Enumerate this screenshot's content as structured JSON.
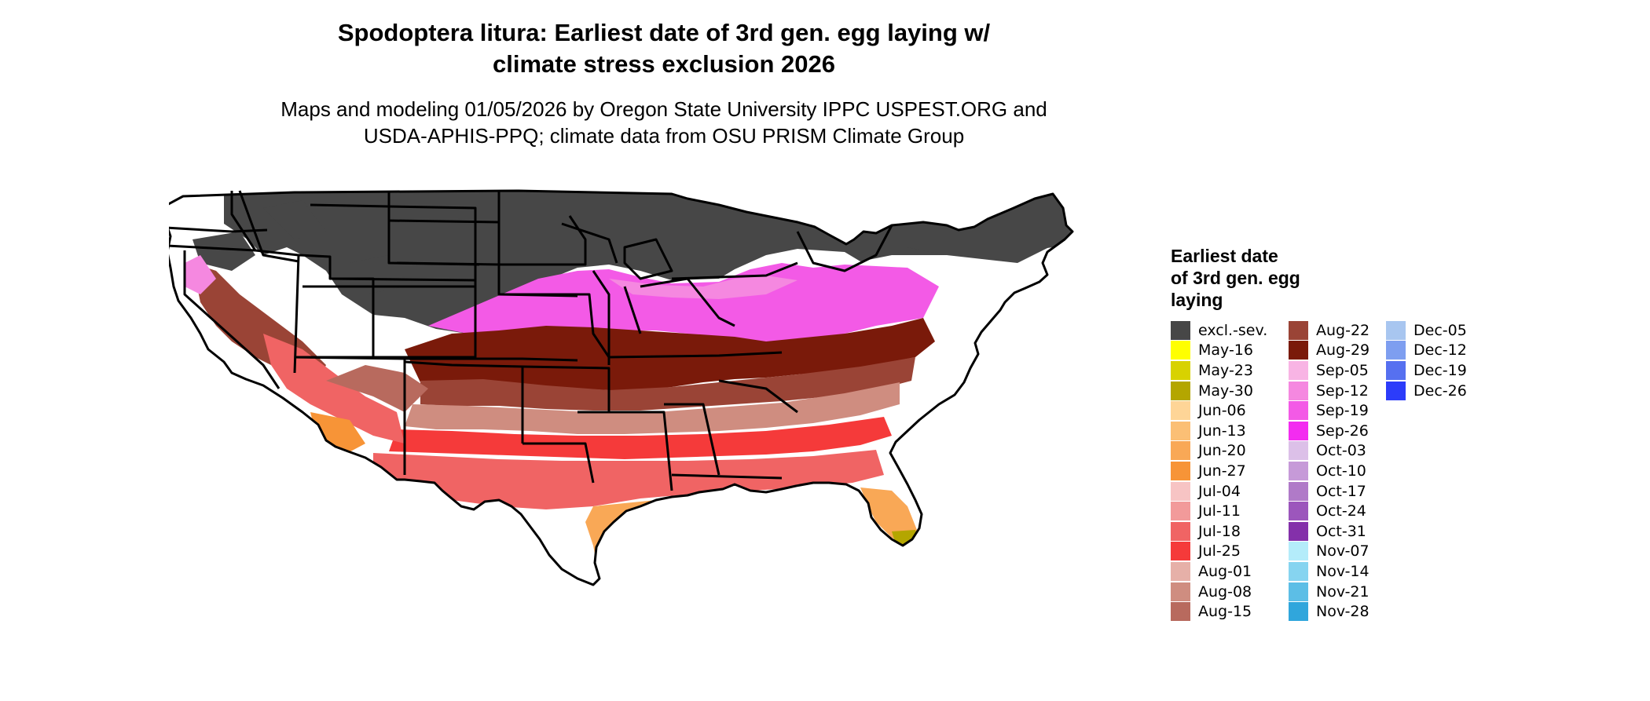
{
  "title_line1": "Spodoptera litura: Earliest date of 3rd gen. egg laying w/",
  "title_line2": "climate stress exclusion 2026",
  "subtitle_line1": "Maps and modeling 01/05/2026 by Oregon State University IPPC USPEST.ORG and",
  "subtitle_line2": "USDA-APHIS-PPQ; climate data from OSU PRISM Climate Group",
  "legend": {
    "title_line1": "Earliest date",
    "title_line2": "of 3rd gen. egg",
    "title_line3": "laying",
    "columns": [
      [
        {
          "label": "excl.-sev.",
          "color": "#474747"
        },
        {
          "label": "May-16",
          "color": "#ffff00"
        },
        {
          "label": "May-23",
          "color": "#d8d200"
        },
        {
          "label": "May-30",
          "color": "#b4a600"
        },
        {
          "label": "Jun-06",
          "color": "#fed597"
        },
        {
          "label": "Jun-13",
          "color": "#fbbf75"
        },
        {
          "label": "Jun-20",
          "color": "#f9a856"
        },
        {
          "label": "Jun-27",
          "color": "#f79437"
        },
        {
          "label": "Jul-04",
          "color": "#f7c4c4"
        },
        {
          "label": "Jul-11",
          "color": "#f29a9a"
        },
        {
          "label": "Jul-18",
          "color": "#f06464"
        },
        {
          "label": "Jul-25",
          "color": "#f53a3a"
        },
        {
          "label": "Aug-01",
          "color": "#e6b0a8"
        },
        {
          "label": "Aug-08",
          "color": "#cf8d80"
        },
        {
          "label": "Aug-15",
          "color": "#b86a5e"
        }
      ],
      [
        {
          "label": "Aug-22",
          "color": "#9a4436"
        },
        {
          "label": "Aug-29",
          "color": "#7a1a0a"
        },
        {
          "label": "Sep-05",
          "color": "#f8b4e4"
        },
        {
          "label": "Sep-12",
          "color": "#f588e0"
        },
        {
          "label": "Sep-19",
          "color": "#f35ae6"
        },
        {
          "label": "Sep-26",
          "color": "#f32cf0"
        },
        {
          "label": "Oct-03",
          "color": "#dcc0e8"
        },
        {
          "label": "Oct-10",
          "color": "#c69ad8"
        },
        {
          "label": "Oct-17",
          "color": "#b07ac8"
        },
        {
          "label": "Oct-24",
          "color": "#9c56bc"
        },
        {
          "label": "Oct-31",
          "color": "#8430aa"
        },
        {
          "label": "Nov-07",
          "color": "#b4ecfa"
        },
        {
          "label": "Nov-14",
          "color": "#86d4f0"
        },
        {
          "label": "Nov-21",
          "color": "#5cbee6"
        },
        {
          "label": "Nov-28",
          "color": "#30a6dc"
        }
      ],
      [
        {
          "label": "Dec-05",
          "color": "#a8c6f0"
        },
        {
          "label": "Dec-12",
          "color": "#7e9ef0"
        },
        {
          "label": "Dec-19",
          "color": "#5670f0"
        },
        {
          "label": "Dec-26",
          "color": "#2c3cfa"
        }
      ]
    ]
  },
  "map_colors": {
    "excluded": "#474747",
    "not_reached": "#ffffff",
    "state_border": "#000000"
  }
}
